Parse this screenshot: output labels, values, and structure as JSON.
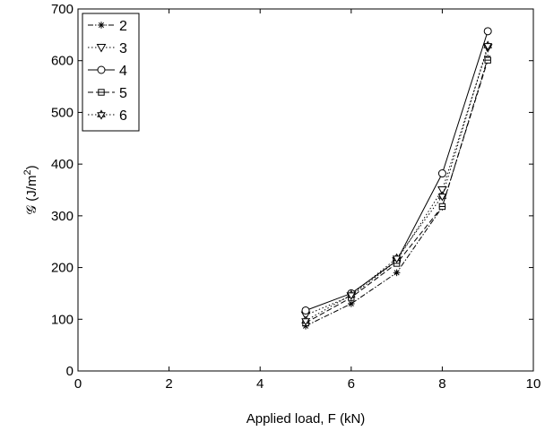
{
  "chart_data": {
    "type": "line",
    "xlabel": "Applied load, F (kN)",
    "ylabel_symbol": "𝒢",
    "ylabel_unit_base": "(J/m",
    "ylabel_unit_exp": "2",
    "ylabel_unit_close": ")",
    "xlim": [
      0,
      10
    ],
    "ylim": [
      0,
      700
    ],
    "xticks": [
      "0",
      "2",
      "4",
      "6",
      "8",
      "10"
    ],
    "yticks": [
      "0",
      "100",
      "200",
      "300",
      "400",
      "500",
      "600",
      "700"
    ],
    "grid": false,
    "legend_position": "top-left",
    "x": [
      5,
      6,
      7,
      8,
      9
    ],
    "series": [
      {
        "name": "2",
        "marker": "asterisk",
        "dash": "dash-dot",
        "values": [
          87,
          130,
          190,
          317,
          605
        ]
      },
      {
        "name": "3",
        "marker": "triangle-down",
        "dash": "dotted",
        "values": [
          108,
          145,
          213,
          350,
          625
        ]
      },
      {
        "name": "4",
        "marker": "circle",
        "dash": "solid",
        "values": [
          117,
          150,
          213,
          382,
          657
        ]
      },
      {
        "name": "5",
        "marker": "square",
        "dash": "dashed",
        "values": [
          93,
          142,
          208,
          318,
          601
        ]
      },
      {
        "name": "6",
        "marker": "hexagram",
        "dash": "dotted",
        "values": [
          97,
          147,
          218,
          338,
          629
        ]
      }
    ]
  }
}
